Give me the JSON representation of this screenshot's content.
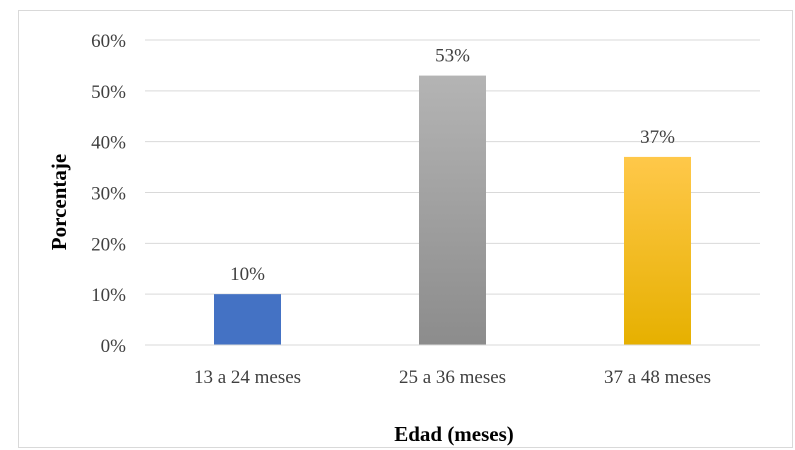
{
  "chart_data": {
    "type": "bar",
    "categories": [
      "13 a 24 meses",
      "25 a 36 meses",
      "37 a 48 meses"
    ],
    "values": [
      10,
      53,
      37
    ],
    "data_labels": [
      "10%",
      "53%",
      "37%"
    ],
    "ylabel": "Porcentaje",
    "xlabel": "Edad (meses)",
    "ylim": [
      0,
      60
    ],
    "yticks": [
      0,
      10,
      20,
      30,
      40,
      50,
      60
    ],
    "ytick_labels": [
      "0%",
      "10%",
      "20%",
      "30%",
      "40%",
      "50%",
      "60%"
    ],
    "grid": true,
    "legend": "none",
    "colors": [
      {
        "top": "#4472c4",
        "bottom": "#4472c4"
      },
      {
        "top": "#b4b4b4",
        "bottom": "#8c8c8c"
      },
      {
        "top": "#ffc84a",
        "bottom": "#e6b000"
      }
    ],
    "gridline_color": "#d9d9d9"
  }
}
